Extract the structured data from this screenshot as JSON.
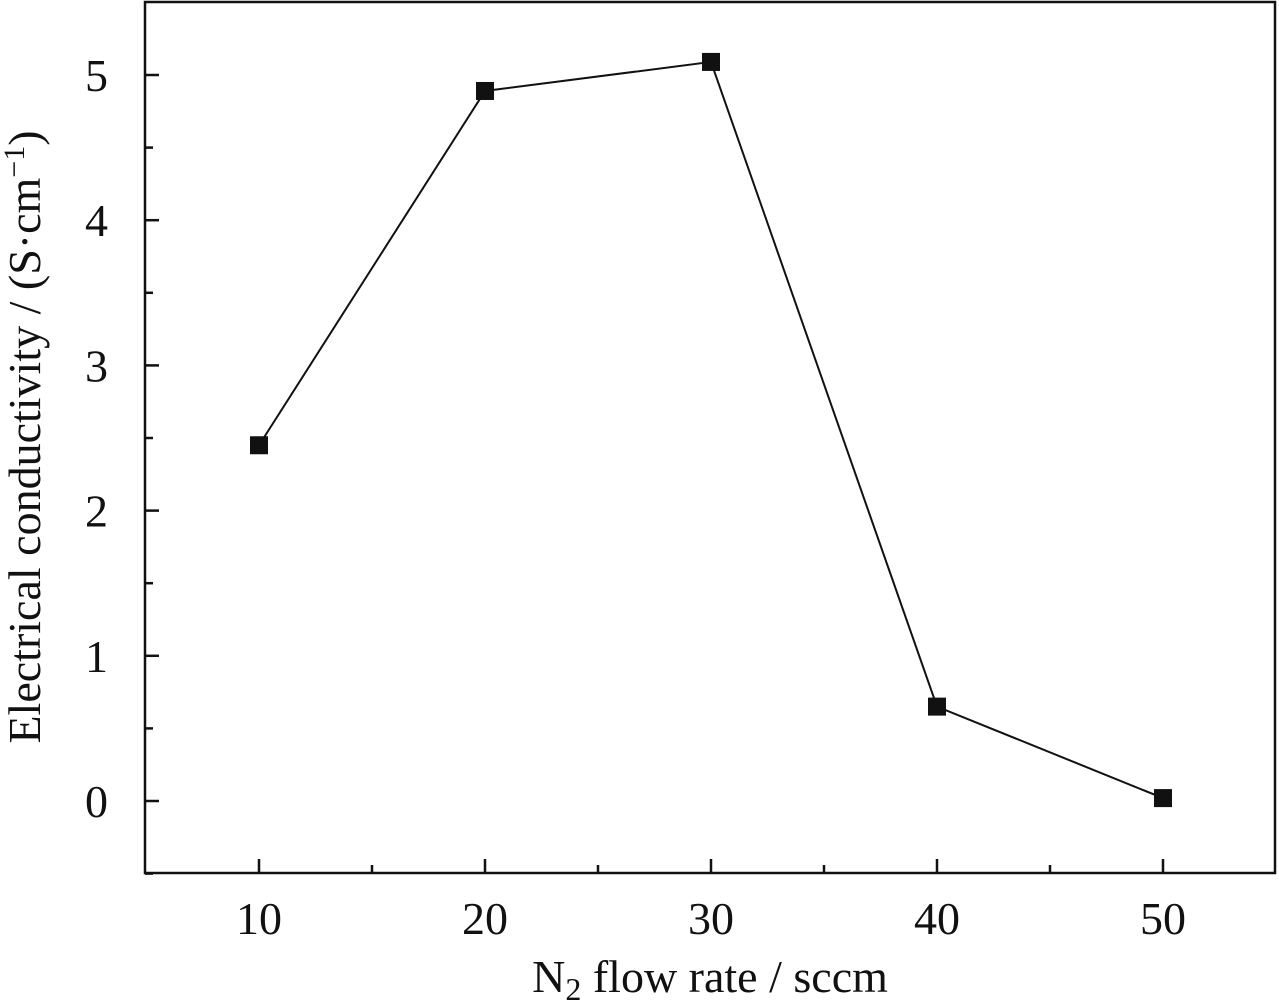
{
  "chart_data": {
    "type": "line",
    "title": "",
    "xlabel": {
      "main": "N",
      "sub": "2",
      "rest": " flow rate / sccm"
    },
    "ylabel": {
      "main": "Electrical conductivity / (S·cm",
      "sup": "−1",
      "end": ")"
    },
    "xlim": [
      5,
      55
    ],
    "ylim": [
      -0.5,
      5.5
    ],
    "x_ticks": [
      10,
      20,
      30,
      40,
      50
    ],
    "x_minor_ticks": [
      15,
      25,
      35,
      45
    ],
    "y_ticks": [
      0,
      1,
      2,
      3,
      4,
      5
    ],
    "y_minor_ticks": [
      -0.5,
      0.5,
      1.5,
      2.5,
      3.5,
      4.5
    ],
    "grid": false,
    "series": [
      {
        "marker": "square",
        "color": "#111111",
        "x": [
          10,
          20,
          30,
          40,
          50
        ],
        "y": [
          2.45,
          4.89,
          5.09,
          0.65,
          0.02
        ]
      }
    ]
  }
}
